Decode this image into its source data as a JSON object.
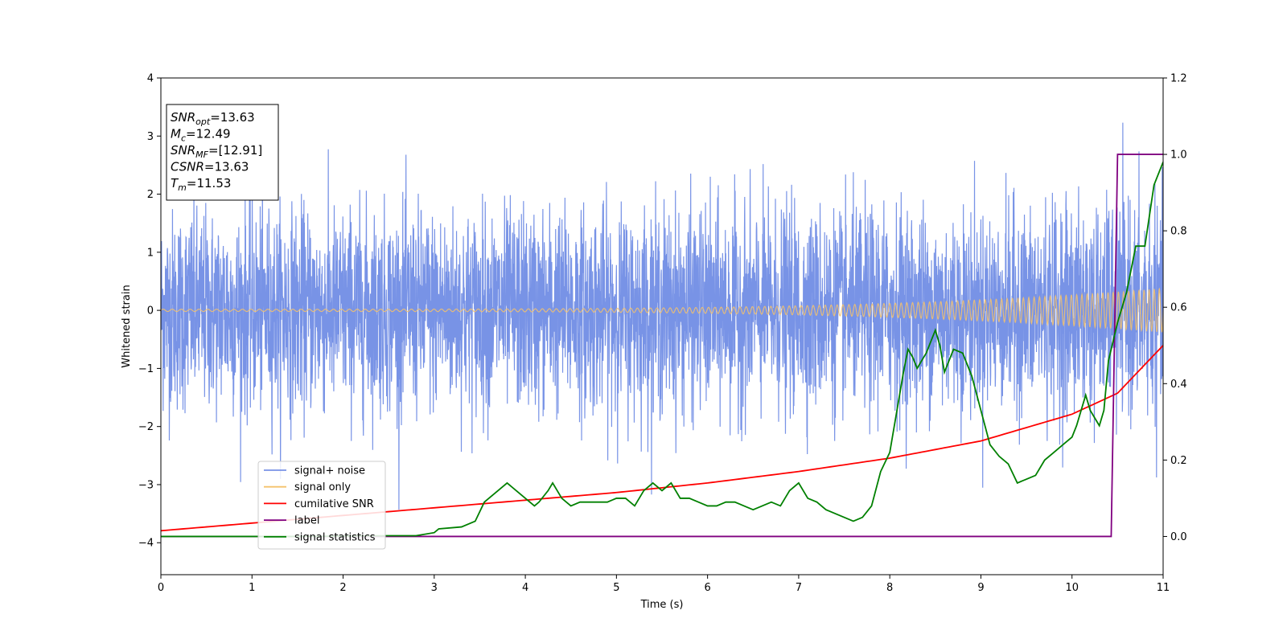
{
  "chart_data": {
    "type": "line",
    "xlabel": "Time (s)",
    "ylabel": "Whitened strain",
    "xlim": [
      0,
      11
    ],
    "ylim_left": [
      -4.55,
      4.0
    ],
    "ylim_right": [
      -0.1,
      1.2
    ],
    "x_ticks": [
      "0",
      "1",
      "2",
      "3",
      "4",
      "5",
      "6",
      "7",
      "8",
      "9",
      "10",
      "11"
    ],
    "y_ticks_left": [
      "4",
      "3",
      "2",
      "1",
      "0",
      "−1",
      "−2",
      "−3",
      "−4"
    ],
    "y_ticks_right": [
      "1.2",
      "1.0",
      "0.8",
      "0.6",
      "0.4",
      "0.2",
      "0.0"
    ],
    "legend": {
      "placement": "lower-left",
      "entries": [
        "signal+ noise",
        "signal only",
        "cumilative SNR",
        "label",
        "signal statistics"
      ]
    },
    "colors": {
      "signal_noise": "#7893e6",
      "signal_only": "#f5c26b",
      "cumulative_snr": "#ff0000",
      "label": "#800080",
      "signal_statistics": "#008000"
    },
    "series": [
      {
        "name": "signal+ noise",
        "axis": "left",
        "kind": "gaussian-noise band plus chirp",
        "noise_std": 0.85,
        "y_range": [
          -3.85,
          3.63
        ]
      },
      {
        "name": "signal only",
        "axis": "left",
        "kind": "chirp",
        "amp_start": 0.02,
        "amp_end": 0.38,
        "x_range": [
          0,
          11
        ]
      },
      {
        "name": "cumilative SNR",
        "axis": "right",
        "x": [
          0,
          1,
          2,
          3,
          4,
          5,
          6,
          7,
          8,
          9,
          10,
          10.5,
          11
        ],
        "y": [
          0.015,
          0.035,
          0.055,
          0.075,
          0.095,
          0.115,
          0.14,
          0.17,
          0.205,
          0.25,
          0.32,
          0.375,
          0.5
        ]
      },
      {
        "name": "label",
        "axis": "right",
        "x": [
          0,
          10.43,
          10.5,
          11
        ],
        "y": [
          0,
          0,
          1,
          1
        ]
      },
      {
        "name": "signal statistics",
        "axis": "right",
        "x": [
          0,
          0.5,
          1,
          1.5,
          2,
          2.5,
          2.8,
          3.0,
          3.05,
          3.3,
          3.45,
          3.55,
          3.6,
          3.7,
          3.8,
          3.9,
          4.0,
          4.1,
          4.15,
          4.25,
          4.3,
          4.4,
          4.5,
          4.6,
          4.7,
          4.8,
          4.9,
          5.0,
          5.1,
          5.2,
          5.3,
          5.4,
          5.5,
          5.6,
          5.7,
          5.8,
          5.9,
          6.0,
          6.1,
          6.2,
          6.3,
          6.4,
          6.5,
          6.6,
          6.7,
          6.8,
          6.9,
          7.0,
          7.1,
          7.2,
          7.3,
          7.4,
          7.5,
          7.6,
          7.7,
          7.8,
          7.9,
          8.0,
          8.1,
          8.15,
          8.2,
          8.25,
          8.3,
          8.4,
          8.5,
          8.55,
          8.6,
          8.7,
          8.8,
          8.9,
          9.0,
          9.1,
          9.2,
          9.3,
          9.4,
          9.5,
          9.6,
          9.7,
          9.8,
          9.9,
          10.0,
          10.05,
          10.15,
          10.2,
          10.3,
          10.35,
          10.4,
          10.5,
          10.6,
          10.7,
          10.8,
          10.9,
          11.0
        ],
        "y": [
          0,
          0,
          0,
          0,
          0.001,
          0.002,
          0.002,
          0.01,
          0.02,
          0.025,
          0.04,
          0.09,
          0.1,
          0.12,
          0.14,
          0.12,
          0.1,
          0.08,
          0.09,
          0.12,
          0.14,
          0.1,
          0.08,
          0.09,
          0.09,
          0.09,
          0.09,
          0.1,
          0.1,
          0.08,
          0.12,
          0.14,
          0.12,
          0.14,
          0.1,
          0.1,
          0.09,
          0.08,
          0.08,
          0.09,
          0.09,
          0.08,
          0.07,
          0.08,
          0.09,
          0.08,
          0.12,
          0.14,
          0.1,
          0.09,
          0.07,
          0.06,
          0.05,
          0.04,
          0.05,
          0.08,
          0.17,
          0.22,
          0.36,
          0.43,
          0.49,
          0.47,
          0.44,
          0.48,
          0.54,
          0.5,
          0.43,
          0.49,
          0.48,
          0.42,
          0.33,
          0.24,
          0.21,
          0.19,
          0.14,
          0.15,
          0.16,
          0.2,
          0.22,
          0.24,
          0.26,
          0.29,
          0.37,
          0.33,
          0.29,
          0.33,
          0.46,
          0.56,
          0.64,
          0.76,
          0.76,
          0.92,
          0.98
        ]
      }
    ],
    "info_box": {
      "lines": [
        {
          "label": "SNR",
          "sub": "opt",
          "value": "=13.63"
        },
        {
          "label": "M",
          "sub": "c",
          "value": "=12.49"
        },
        {
          "label": "SNR",
          "sub": "MF",
          "value": "=[12.91]"
        },
        {
          "label": "CSNR",
          "sub": "",
          "value": "=13.63"
        },
        {
          "label": "T",
          "sub": "m",
          "value": "=11.53"
        }
      ]
    }
  }
}
